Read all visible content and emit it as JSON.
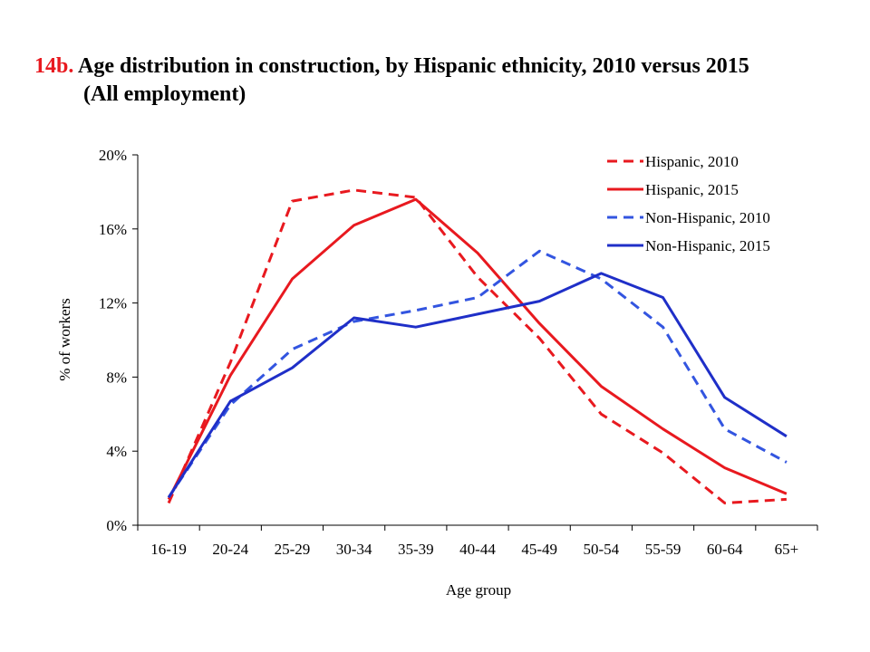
{
  "chart_data": {
    "type": "line",
    "title_prefix": "14b.",
    "title": "Age distribution in construction, by Hispanic ethnicity, 2010 versus 2015",
    "subtitle": "(All employment)",
    "xlabel": "Age group",
    "ylabel": "% of workers",
    "categories": [
      "16-19",
      "20-24",
      "25-29",
      "30-34",
      "35-39",
      "40-44",
      "45-49",
      "50-54",
      "55-59",
      "60-64",
      "65+"
    ],
    "ylim": [
      0,
      20
    ],
    "yticks": [
      "0%",
      "4%",
      "8%",
      "12%",
      "16%",
      "20%"
    ],
    "grid": false,
    "legend_position": "top-right",
    "series": [
      {
        "name": "Hispanic, 2010",
        "color": "#e8191f",
        "style": "dashed",
        "values": [
          1.2,
          8.8,
          17.5,
          18.1,
          17.7,
          13.4,
          10.1,
          6.0,
          3.9,
          1.2,
          1.4
        ]
      },
      {
        "name": "Hispanic, 2015",
        "color": "#e8191f",
        "style": "solid",
        "values": [
          1.4,
          8.1,
          13.3,
          16.2,
          17.6,
          14.7,
          10.9,
          7.5,
          5.2,
          3.1,
          1.7
        ]
      },
      {
        "name": "Non-Hispanic, 2010",
        "color": "#3355e0",
        "style": "dashed",
        "values": [
          1.5,
          6.5,
          9.5,
          11.0,
          11.6,
          12.3,
          14.8,
          13.3,
          10.7,
          5.2,
          3.4
        ]
      },
      {
        "name": "Non-Hispanic, 2015",
        "color": "#1f2fc8",
        "style": "solid",
        "values": [
          1.5,
          6.7,
          8.5,
          11.2,
          10.7,
          11.4,
          12.1,
          13.6,
          12.3,
          6.9,
          4.8
        ]
      }
    ]
  }
}
